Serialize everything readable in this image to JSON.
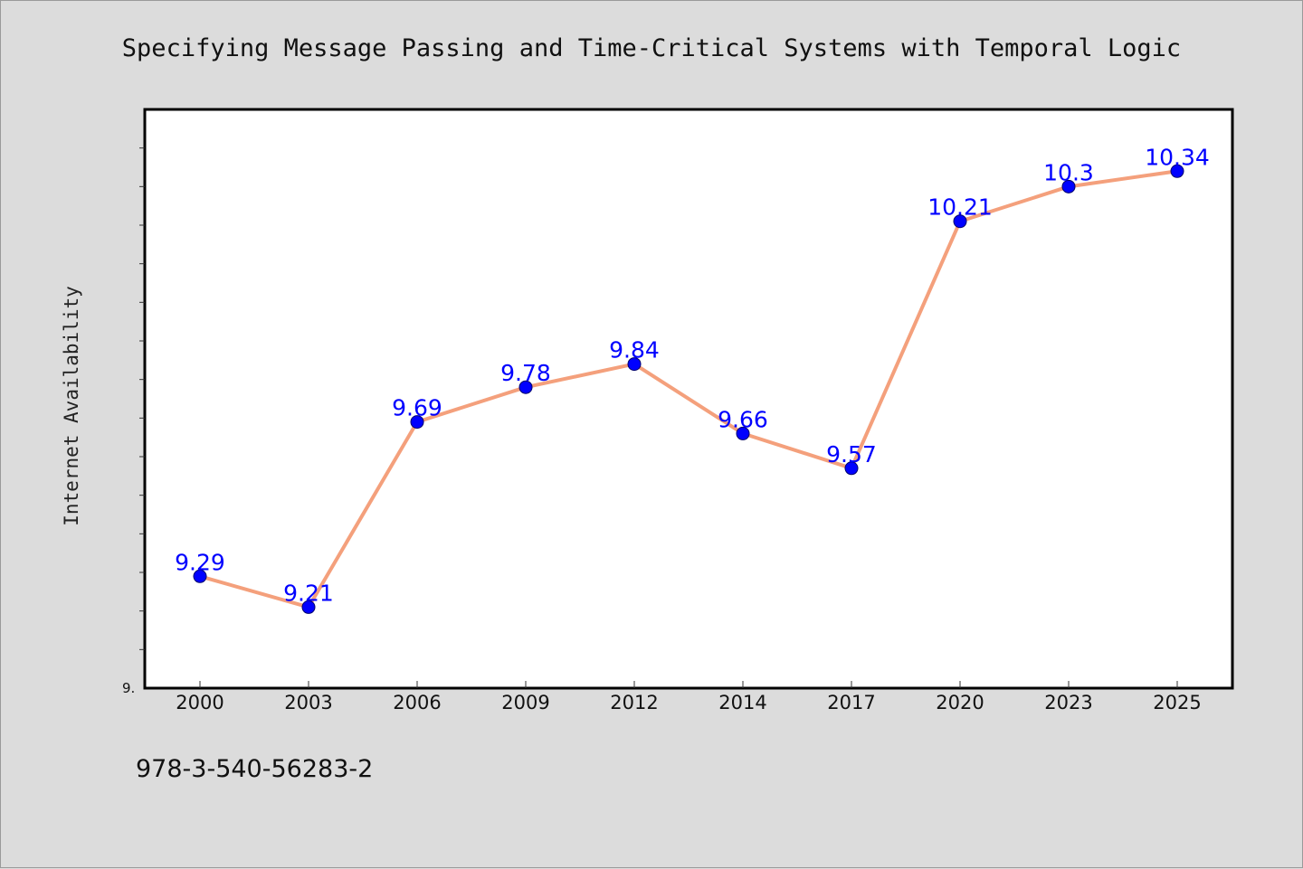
{
  "chart_data": {
    "type": "line",
    "title": "Specifying Message Passing and Time-Critical Systems with Temporal Logic",
    "xlabel": "",
    "ylabel": "Internet Availability",
    "categories": [
      "2000",
      "2003",
      "2006",
      "2009",
      "2012",
      "2014",
      "2017",
      "2020",
      "2023",
      "2025"
    ],
    "series": [
      {
        "values": [
          9.29,
          9.21,
          9.69,
          9.78,
          9.84,
          9.66,
          9.57,
          10.21,
          10.3,
          10.34
        ],
        "labels": [
          "9.29",
          "9.21",
          "9.69",
          "9.78",
          "9.84",
          "9.66",
          "9.57",
          "10.21",
          "10.3",
          "10.34"
        ]
      }
    ],
    "ylim": [
      9.0,
      10.5
    ],
    "y_tick_labels": [
      "9."
    ],
    "line_color": "#f4a07c",
    "marker_color": "#0000ff",
    "grid": false,
    "legend": "none"
  },
  "footer": {
    "isbn": "978-3-540-56283-2"
  }
}
